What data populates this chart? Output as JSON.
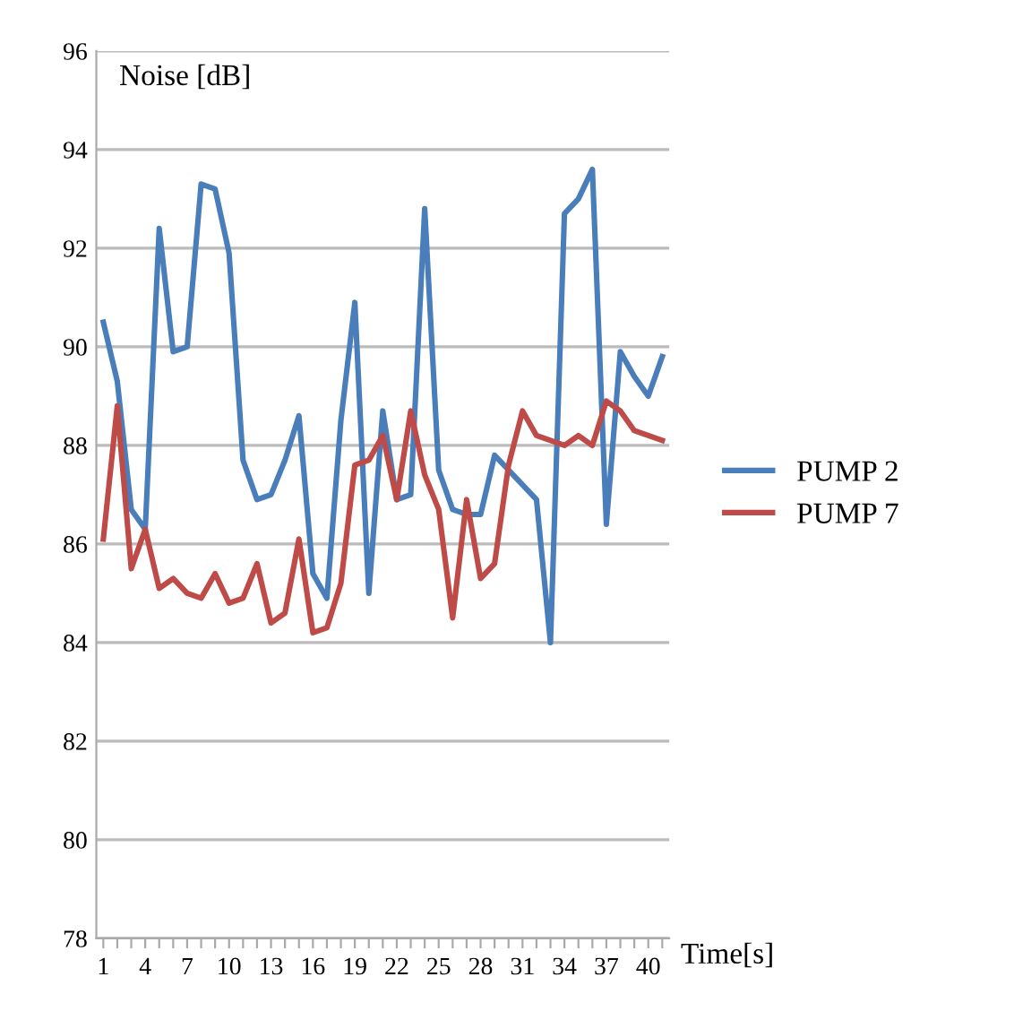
{
  "chart_data": {
    "type": "line",
    "xlabel": "Time[s]",
    "ylabel": "Noise [dB]",
    "categories": [
      "1",
      null,
      null,
      "4",
      null,
      null,
      "7",
      null,
      null,
      "10",
      null,
      null,
      "13",
      null,
      null,
      "16",
      null,
      null,
      "19",
      null,
      null,
      "22",
      null,
      null,
      "25",
      null,
      null,
      "28",
      null,
      null,
      "31",
      null,
      null,
      "34",
      null,
      null,
      "37",
      null,
      null,
      "40",
      null
    ],
    "series": [
      {
        "name": "PUMP 2",
        "color": "#4a7ebb",
        "values": [
          90.5,
          89.3,
          86.7,
          86.3,
          92.4,
          89.9,
          90.0,
          93.3,
          93.2,
          91.9,
          87.7,
          86.9,
          87.0,
          87.7,
          88.6,
          85.4,
          84.9,
          88.5,
          90.9,
          85.0,
          88.7,
          86.9,
          87.0,
          92.8,
          87.5,
          86.7,
          86.6,
          86.6,
          87.8,
          87.5,
          87.2,
          86.9,
          84.0,
          92.7,
          93.0,
          93.6,
          86.4,
          89.9,
          89.4,
          89.0,
          89.8
        ]
      },
      {
        "name": "PUMP 7",
        "color": "#be4b48",
        "values": [
          86.1,
          88.8,
          85.5,
          86.3,
          85.1,
          85.3,
          85.0,
          84.9,
          85.4,
          84.8,
          84.9,
          85.6,
          84.4,
          84.6,
          86.1,
          84.2,
          84.3,
          85.2,
          87.6,
          87.7,
          88.2,
          86.9,
          88.7,
          87.4,
          86.7,
          84.5,
          86.9,
          85.3,
          85.6,
          87.6,
          88.7,
          88.2,
          88.1,
          88.0,
          88.2,
          88.0,
          88.9,
          88.7,
          88.3,
          88.2,
          88.1
        ]
      }
    ],
    "ylim": [
      78,
      96
    ],
    "yticks": [
      78,
      80,
      82,
      84,
      86,
      88,
      90,
      92,
      94,
      96
    ],
    "grid": "y",
    "legend": "right",
    "marker": "none",
    "line_style": "solid"
  }
}
